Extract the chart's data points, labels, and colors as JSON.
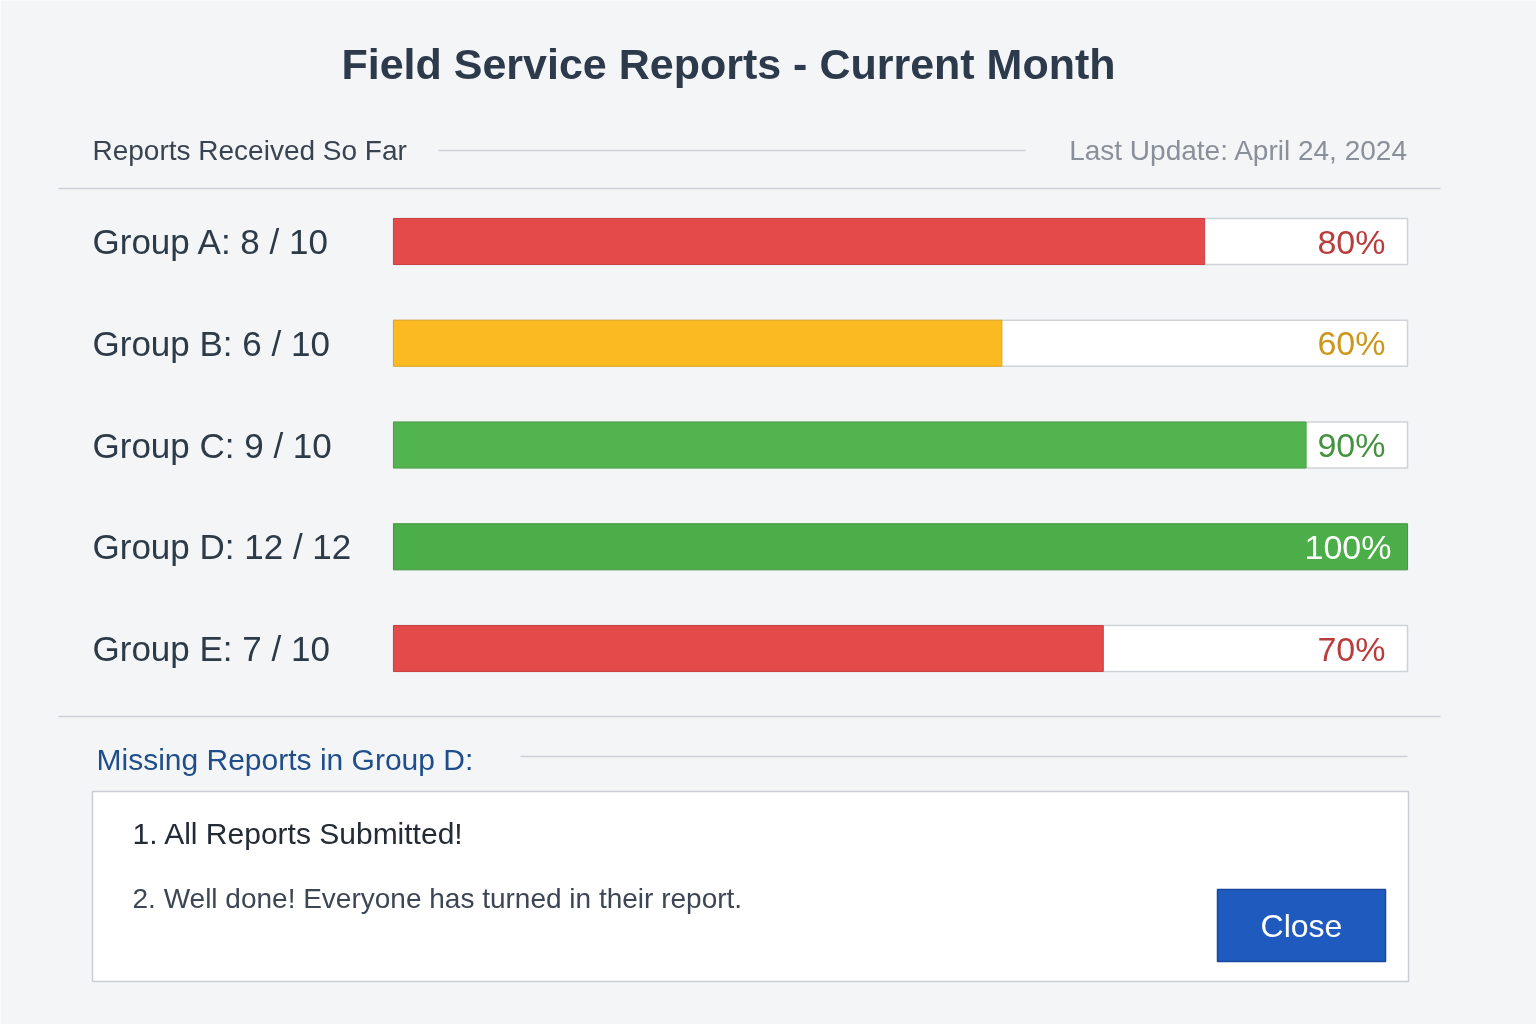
{
  "chart_data": {
    "type": "bar",
    "orientation": "horizontal",
    "title": "Field Service Reports - Current Month",
    "subtitle": "Reports Received So Far",
    "categories": [
      "Group A: 8 / 10",
      "Group B: 6 / 10",
      "Group C: 9 / 10",
      "Group D: 12 / 12",
      "Group E: 7 / 10"
    ],
    "values": [
      80,
      60,
      90,
      100,
      70
    ],
    "colors": [
      "#e34a4a",
      "#fbb922",
      "#52b44e",
      "#4cae49",
      "#e34a4a"
    ],
    "value_labels": [
      "80%",
      "60%",
      "90%",
      "100%",
      "70%"
    ],
    "xlim": [
      0,
      100
    ],
    "tick_labels": "y",
    "annotations": [
      "Last Update: April 24, 2024",
      "Missing Reports in Group D:",
      "1. All Reports Submitted!",
      "2. Well done! Everyone has turned in their report.",
      "Close"
    ]
  }
}
